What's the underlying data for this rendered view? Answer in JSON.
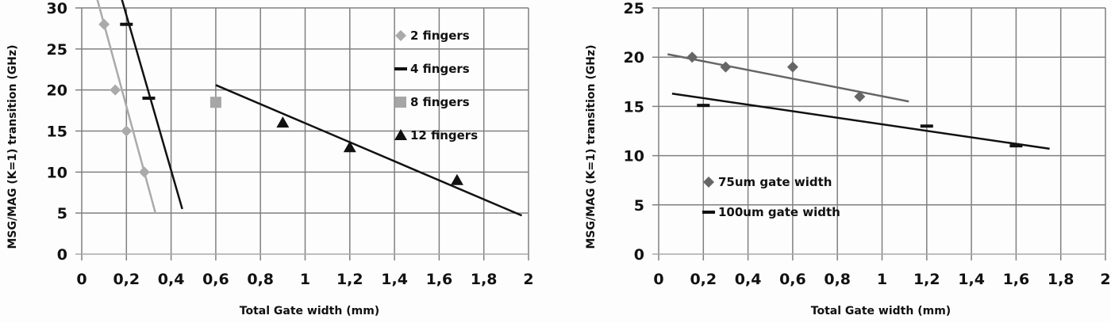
{
  "chart_data": [
    {
      "type": "scatter",
      "title": "",
      "xlabel": "Total  Gate width (mm)",
      "ylabel": "MSG/MAG (K=1) transition (GHz)",
      "xlim": [
        0,
        2
      ],
      "ylim": [
        0,
        30
      ],
      "xticks": [
        "0",
        "0,2",
        "0,4",
        "0,6",
        "0,8",
        "1",
        "1,2",
        "1,4",
        "1,6",
        "1,8",
        "2"
      ],
      "yticks": [
        "0",
        "5",
        "10",
        "15",
        "20",
        "25",
        "30"
      ],
      "grid": true,
      "legend_position": "upper right inside",
      "series": [
        {
          "name": "2 fingers",
          "marker": "diamond",
          "color": "#aaaaaa",
          "x": [
            0.1,
            0.15,
            0.2,
            0.28
          ],
          "y": [
            28,
            20,
            15,
            10
          ],
          "trendline": {
            "x": [
              0.07,
              0.33
            ],
            "y": [
              31,
              5
            ]
          }
        },
        {
          "name": "4 fingers",
          "marker": "dash",
          "color": "#111111",
          "x": [
            0.2,
            0.3
          ],
          "y": [
            28,
            19
          ],
          "trendline": {
            "x": [
              0.18,
              0.45
            ],
            "y": [
              31,
              5.5
            ]
          }
        },
        {
          "name": "8 fingers",
          "marker": "square",
          "color": "#a6a6a6",
          "x": [
            0.6
          ],
          "y": [
            18.5
          ]
        },
        {
          "name": "12 fingers",
          "marker": "triangle",
          "color": "#111111",
          "x": [
            0.9,
            1.2,
            1.68
          ],
          "y": [
            16,
            13,
            9
          ],
          "trendline": {
            "x": [
              0.6,
              1.97
            ],
            "y": [
              20.6,
              4.7
            ]
          }
        }
      ]
    },
    {
      "type": "scatter",
      "title": "",
      "xlabel": "Total  Gate width (mm)",
      "ylabel": "MSG/MAG (K=1) transition (GHz)",
      "xlim": [
        0,
        2
      ],
      "ylim": [
        0,
        25
      ],
      "xticks": [
        "0",
        "0,2",
        "0,4",
        "0,6",
        "0,8",
        "1",
        "1,2",
        "1,4",
        "1,6",
        "1,8",
        "2"
      ],
      "yticks": [
        "0",
        "5",
        "10",
        "15",
        "20",
        "25"
      ],
      "grid": true,
      "legend_position": "lower left inside",
      "series": [
        {
          "name": "75um gate width",
          "marker": "diamond",
          "color": "#666666",
          "x": [
            0.15,
            0.3,
            0.6,
            0.9
          ],
          "y": [
            20,
            19,
            19,
            16
          ],
          "trendline": {
            "x": [
              0.04,
              1.12
            ],
            "y": [
              20.3,
              15.5
            ]
          }
        },
        {
          "name": "100um gate width",
          "marker": "dash",
          "color": "#111111",
          "x": [
            0.2,
            1.2,
            1.6
          ],
          "y": [
            15.1,
            13,
            11
          ],
          "trendline": {
            "x": [
              0.06,
              1.75
            ],
            "y": [
              16.3,
              10.7
            ]
          }
        }
      ]
    }
  ]
}
